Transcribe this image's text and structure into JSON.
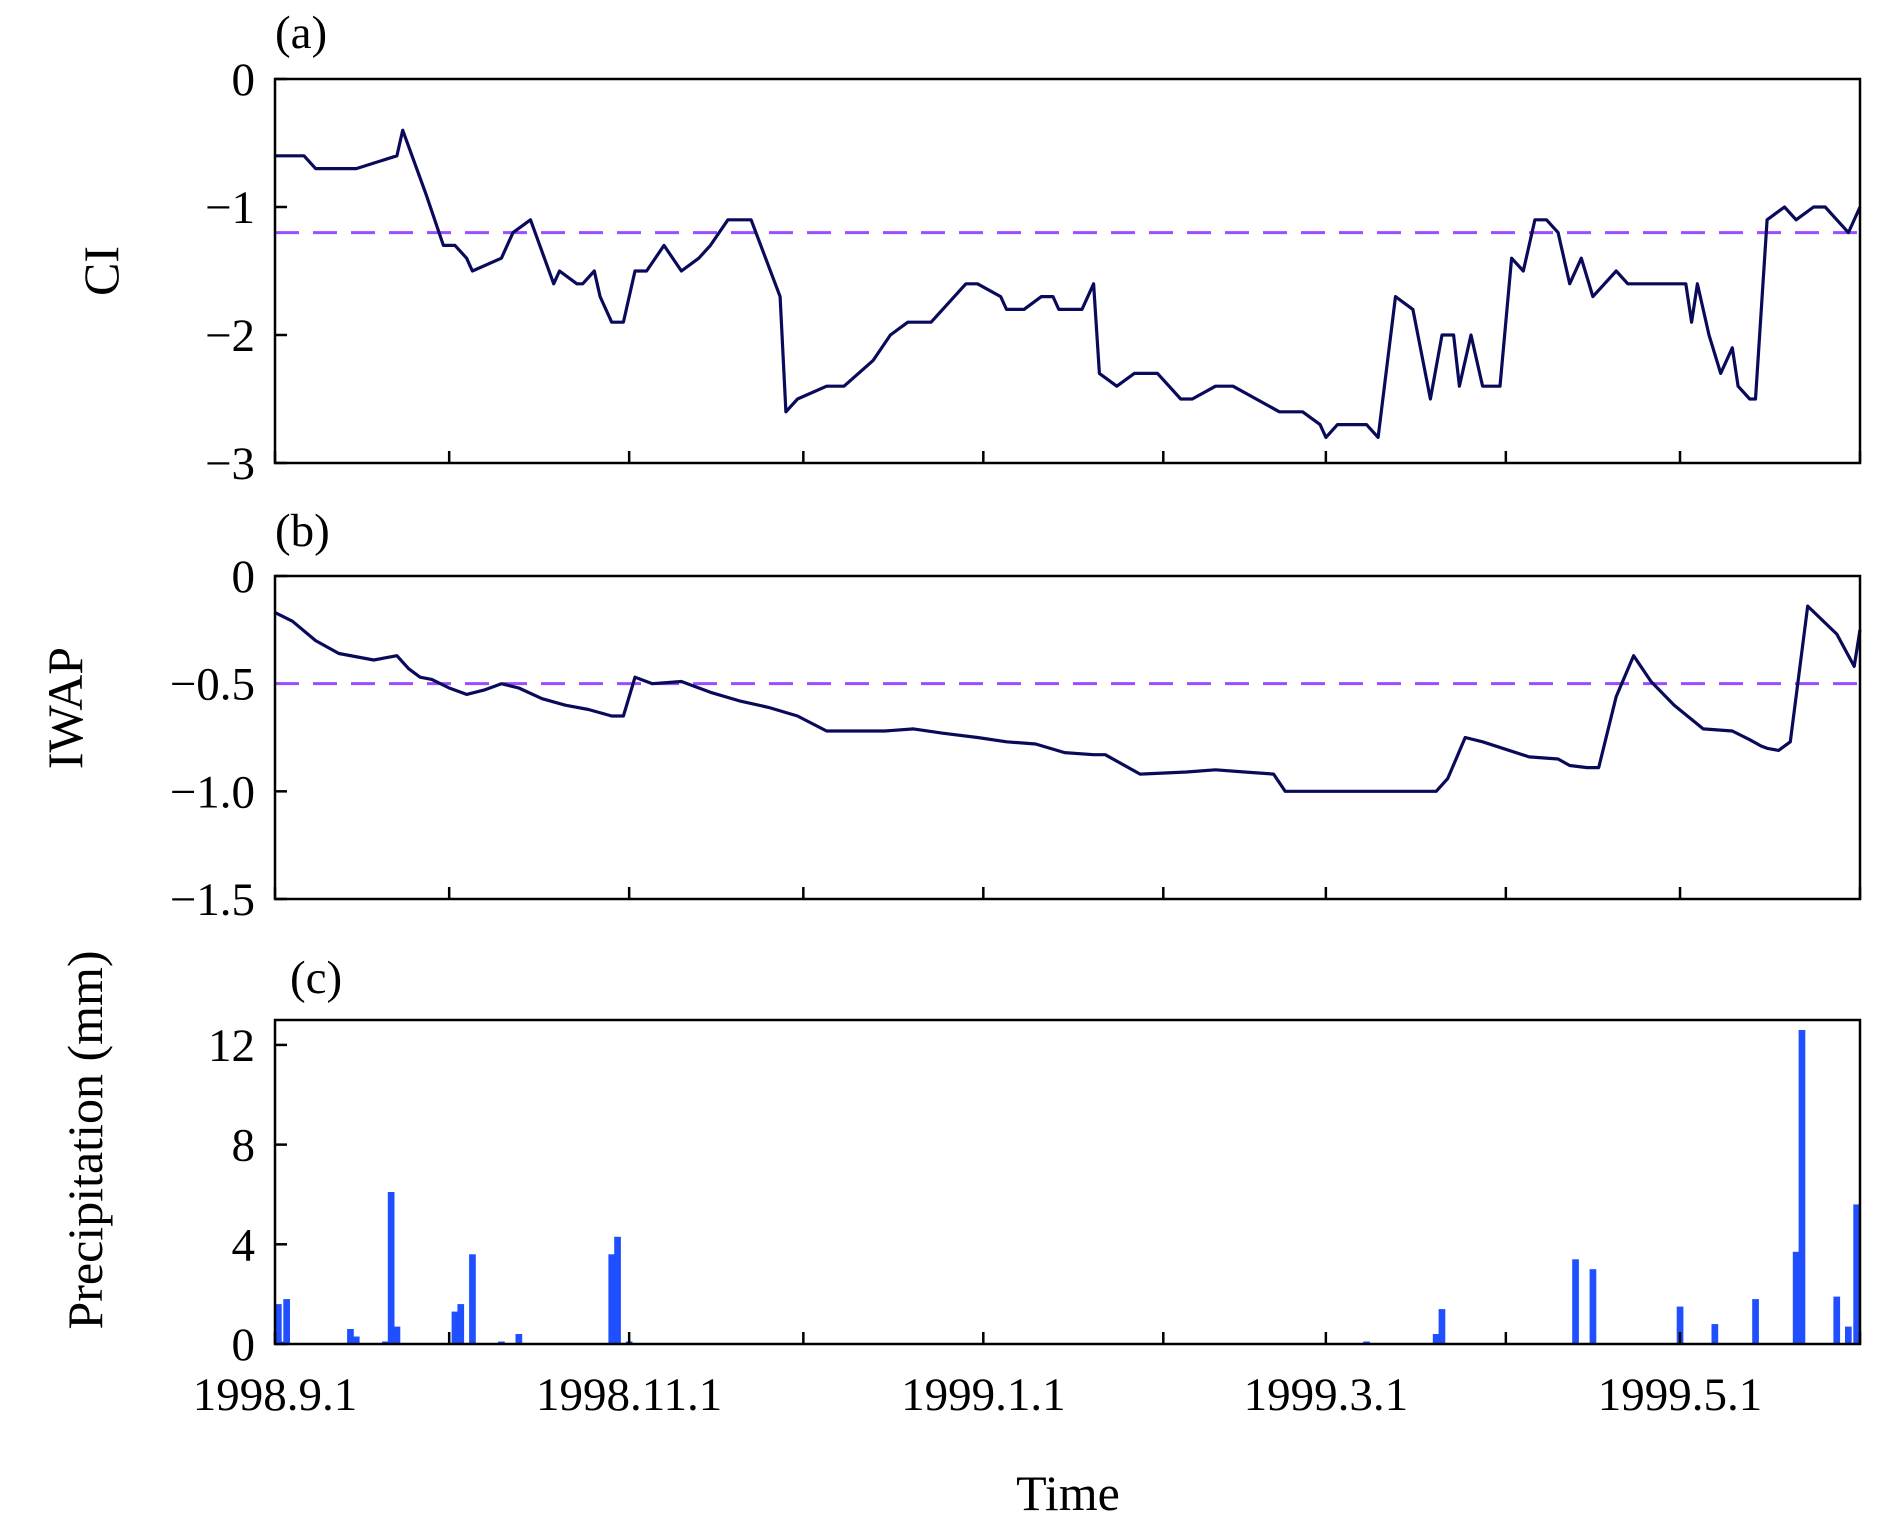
{
  "chart_data": [
    {
      "type": "line",
      "panel_label": "(a)",
      "ylabel": "CI",
      "ylim": [
        -3,
        0
      ],
      "yticks": [
        0,
        -1,
        -2,
        -3
      ],
      "ytick_labels": [
        "0",
        "−1",
        "−2",
        "−3"
      ],
      "xlim": [
        "1998-09-01",
        "1999-06-01"
      ],
      "threshold": -1.2,
      "threshold_color": "#9b4dff",
      "line_color": "#0a0a5a",
      "series": [
        {
          "x": [
            "1998-09-01",
            "1998-09-06",
            "1998-09-08",
            "1998-09-15",
            "1998-09-22",
            "1998-09-23",
            "1998-09-27",
            "1998-09-30",
            "1998-10-01",
            "1998-10-02",
            "1998-10-04",
            "1998-10-05",
            "1998-10-10",
            "1998-10-12",
            "1998-10-15",
            "1998-10-19",
            "1998-10-20",
            "1998-10-23",
            "1998-10-24",
            "1998-10-26",
            "1998-10-27",
            "1998-10-29",
            "1998-10-31",
            "1998-11-02",
            "1998-11-04",
            "1998-11-07",
            "1998-11-10",
            "1998-11-13",
            "1998-11-15",
            "1998-11-18",
            "1998-11-22",
            "1998-11-27",
            "1998-11-28",
            "1998-11-30",
            "1998-12-05",
            "1998-12-08",
            "1998-12-13",
            "1998-12-16",
            "1998-12-19",
            "1998-12-23",
            "1998-12-29",
            "1998-12-31",
            "1999-01-04",
            "1999-01-05",
            "1999-01-08",
            "1999-01-11",
            "1999-01-13",
            "1999-01-14",
            "1999-01-18",
            "1999-01-20",
            "1999-01-21",
            "1999-01-24",
            "1999-01-27",
            "1999-01-31",
            "1999-02-04",
            "1999-02-06",
            "1999-02-10",
            "1999-02-13",
            "1999-02-17",
            "1999-02-21",
            "1999-02-25",
            "1999-02-28",
            "1999-03-01",
            "1999-03-03",
            "1999-03-06",
            "1999-03-08",
            "1999-03-10",
            "1999-03-13",
            "1999-03-16",
            "1999-03-19",
            "1999-03-21",
            "1999-03-23",
            "1999-03-24",
            "1999-03-26",
            "1999-03-28",
            "1999-03-31",
            "1999-04-02",
            "1999-04-04",
            "1999-04-06",
            "1999-04-08",
            "1999-04-10",
            "1999-04-12",
            "1999-04-14",
            "1999-04-16",
            "1999-04-20",
            "1999-04-22",
            "1999-04-24",
            "1999-04-28",
            "1999-05-02",
            "1999-05-03",
            "1999-05-04",
            "1999-05-06",
            "1999-05-08",
            "1999-05-10",
            "1999-05-11",
            "1999-05-13",
            "1999-05-14",
            "1999-05-16",
            "1999-05-19",
            "1999-05-21",
            "1999-05-24",
            "1999-05-26",
            "1999-05-28",
            "1999-05-30",
            "1999-06-01"
          ],
          "y": [
            -0.6,
            -0.6,
            -0.7,
            -0.7,
            -0.6,
            -0.4,
            -0.9,
            -1.3,
            -1.3,
            -1.3,
            -1.4,
            -1.5,
            -1.4,
            -1.2,
            -1.1,
            -1.6,
            -1.5,
            -1.6,
            -1.6,
            -1.5,
            -1.7,
            -1.9,
            -1.9,
            -1.5,
            -1.5,
            -1.3,
            -1.5,
            -1.4,
            -1.3,
            -1.1,
            -1.1,
            -1.7,
            -2.6,
            -2.5,
            -2.4,
            -2.4,
            -2.2,
            -2.0,
            -1.9,
            -1.9,
            -1.6,
            -1.6,
            -1.7,
            -1.8,
            -1.8,
            -1.7,
            -1.7,
            -1.8,
            -1.8,
            -1.6,
            -2.3,
            -2.4,
            -2.3,
            -2.3,
            -2.5,
            -2.5,
            -2.4,
            -2.4,
            -2.5,
            -2.6,
            -2.6,
            -2.7,
            -2.8,
            -2.7,
            -2.7,
            -2.7,
            -2.8,
            -1.7,
            -1.8,
            -2.5,
            -2.0,
            -2.0,
            -2.4,
            -2.0,
            -2.4,
            -2.4,
            -1.4,
            -1.5,
            -1.1,
            -1.1,
            -1.2,
            -1.6,
            -1.4,
            -1.7,
            -1.5,
            -1.6,
            -1.6,
            -1.6,
            -1.6,
            -1.9,
            -1.6,
            -2.0,
            -2.3,
            -2.1,
            -2.4,
            -2.5,
            -2.5,
            -1.1,
            -1.0,
            -1.1,
            -1.0,
            -1.0,
            -1.1,
            -1.2,
            -1.0
          ]
        }
      ]
    },
    {
      "type": "line",
      "panel_label": "(b)",
      "ylabel": "IWAP",
      "ylim": [
        -1.5,
        0
      ],
      "yticks": [
        0,
        -0.5,
        -1.0,
        -1.5
      ],
      "ytick_labels": [
        "0",
        "−0.5",
        "−1.0",
        "−1.5"
      ],
      "xlim": [
        "1998-09-01",
        "1999-06-01"
      ],
      "threshold": -0.5,
      "threshold_color": "#9b4dff",
      "line_color": "#0a0a5a",
      "series": [
        {
          "x": [
            "1998-09-01",
            "1998-09-04",
            "1998-09-08",
            "1998-09-12",
            "1998-09-18",
            "1998-09-22",
            "1998-09-24",
            "1998-09-26",
            "1998-09-28",
            "1998-10-01",
            "1998-10-04",
            "1998-10-07",
            "1998-10-10",
            "1998-10-13",
            "1998-10-17",
            "1998-10-21",
            "1998-10-25",
            "1998-10-29",
            "1998-10-31",
            "1998-11-02",
            "1998-11-05",
            "1998-11-10",
            "1998-11-15",
            "1998-11-20",
            "1998-11-25",
            "1998-11-30",
            "1998-12-05",
            "1998-12-10",
            "1998-12-15",
            "1998-12-20",
            "1998-12-25",
            "1998-12-31",
            "1999-01-05",
            "1999-01-10",
            "1999-01-15",
            "1999-01-20",
            "1999-01-22",
            "1999-01-28",
            "1999-02-05",
            "1999-02-10",
            "1999-02-15",
            "1999-02-20",
            "1999-02-22",
            "1999-02-28",
            "1999-03-10",
            "1999-03-20",
            "1999-03-22",
            "1999-03-25",
            "1999-03-28",
            "1999-04-05",
            "1999-04-10",
            "1999-04-12",
            "1999-04-15",
            "1999-04-17",
            "1999-04-20",
            "1999-04-23",
            "1999-04-26",
            "1999-04-30",
            "1999-05-05",
            "1999-05-10",
            "1999-05-13",
            "1999-05-15",
            "1999-05-16",
            "1999-05-18",
            "1999-05-20",
            "1999-05-23",
            "1999-05-28",
            "1999-05-31",
            "1999-06-01"
          ],
          "y": [
            -0.17,
            -0.21,
            -0.3,
            -0.36,
            -0.39,
            -0.37,
            -0.43,
            -0.47,
            -0.48,
            -0.52,
            -0.55,
            -0.53,
            -0.5,
            -0.52,
            -0.57,
            -0.6,
            -0.62,
            -0.65,
            -0.65,
            -0.47,
            -0.5,
            -0.49,
            -0.54,
            -0.58,
            -0.61,
            -0.65,
            -0.72,
            -0.72,
            -0.72,
            -0.71,
            -0.73,
            -0.75,
            -0.77,
            -0.78,
            -0.82,
            -0.83,
            -0.83,
            -0.92,
            -0.91,
            -0.9,
            -0.91,
            -0.92,
            -1.0,
            -1.0,
            -1.0,
            -1.0,
            -0.94,
            -0.75,
            -0.77,
            -0.84,
            -0.85,
            -0.88,
            -0.89,
            -0.89,
            -0.56,
            -0.37,
            -0.49,
            -0.6,
            -0.71,
            -0.72,
            -0.76,
            -0.79,
            -0.8,
            -0.81,
            -0.77,
            -0.14,
            -0.27,
            -0.42,
            -0.25
          ]
        }
      ]
    },
    {
      "type": "bar",
      "panel_label": "(c)",
      "ylabel": "Precipitation (mm)",
      "xlabel": "Time",
      "ylim": [
        0,
        13
      ],
      "yticks": [
        0,
        4,
        8,
        12
      ],
      "ytick_labels": [
        "0",
        "4",
        "8",
        "12"
      ],
      "xlim": [
        "1998-09-01",
        "1999-06-01"
      ],
      "bar_color": "#1f4fff",
      "xtick_dates": [
        "1998-09-01",
        "1998-10-01",
        "1998-11-01",
        "1998-12-01",
        "1999-01-01",
        "1999-02-01",
        "1999-03-01",
        "1999-04-01",
        "1999-05-01",
        "1999-06-01"
      ],
      "xtick_labels": [
        "1998.9.1",
        "",
        "1998.11.1",
        "",
        "1999.1.1",
        "",
        "1999.3.1",
        "",
        "1999.5.1",
        ""
      ],
      "x": [
        "1998-09-01",
        "1998-09-02",
        "1998-09-03",
        "1998-09-14",
        "1998-09-15",
        "1998-09-20",
        "1998-09-21",
        "1998-09-22",
        "1998-10-02",
        "1998-10-03",
        "1998-10-05",
        "1998-10-10",
        "1998-10-13",
        "1998-10-29",
        "1998-10-30",
        "1998-11-01",
        "1999-03-08",
        "1999-03-20",
        "1999-03-21",
        "1999-04-13",
        "1999-04-16",
        "1999-05-01",
        "1999-05-07",
        "1999-05-14",
        "1999-05-21",
        "1999-05-22",
        "1999-05-28",
        "1999-05-30",
        "1999-06-01"
      ],
      "values": [
        1.6,
        0.1,
        1.8,
        0.6,
        0.3,
        0.1,
        6.1,
        0.7,
        1.3,
        1.6,
        3.6,
        0.1,
        0.4,
        3.6,
        4.3,
        0.1,
        0.1,
        0.4,
        1.4,
        3.4,
        3.0,
        1.5,
        0.8,
        1.8,
        3.7,
        12.6,
        1.9,
        0.7,
        5.6
      ]
    }
  ]
}
